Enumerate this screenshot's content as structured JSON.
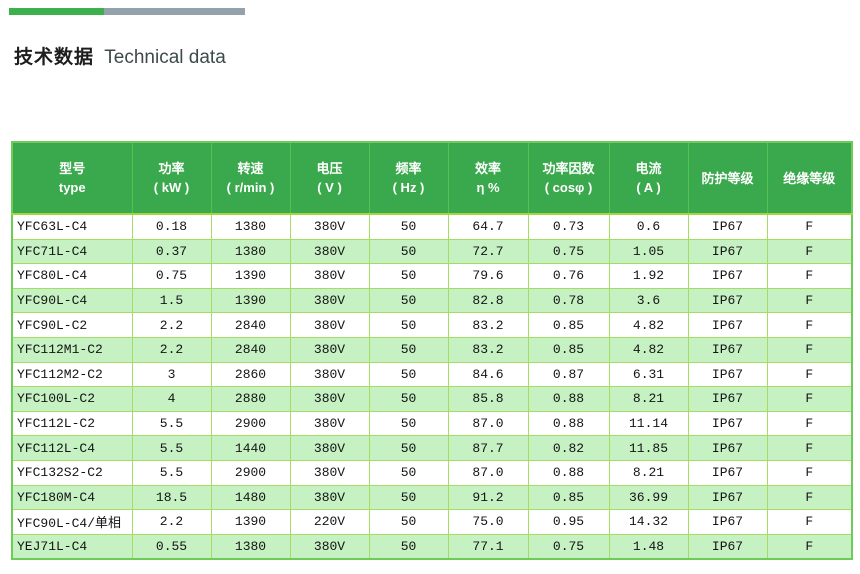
{
  "page": {
    "title": {
      "cn": "技术数据",
      "en": "Technical data"
    }
  },
  "accent_bar": {
    "green_color": "#3cb14b",
    "gray_color": "#93a2ab"
  },
  "colors": {
    "header_background": "#3aa84c",
    "header_text": "#ffffff",
    "alt_row_background": "#c5f1c3",
    "grid_line": "#a6dc64",
    "cell_text": "#141414"
  },
  "table": {
    "columns": [
      {
        "key": "type",
        "label_cn": "型号",
        "label_sub": "type"
      },
      {
        "key": "power",
        "label_cn": "功率",
        "label_sub": "( kW )"
      },
      {
        "key": "speed",
        "label_cn": "转速",
        "label_sub": "( r/min )"
      },
      {
        "key": "voltage",
        "label_cn": "电压",
        "label_sub": "( V )"
      },
      {
        "key": "frequency",
        "label_cn": "频率",
        "label_sub": "( Hz )"
      },
      {
        "key": "efficiency",
        "label_cn": "效率",
        "label_sub": "η %"
      },
      {
        "key": "power_factor",
        "label_cn": "功率因数",
        "label_sub": "( cosφ )"
      },
      {
        "key": "current",
        "label_cn": "电流",
        "label_sub": "( A )"
      },
      {
        "key": "protection",
        "label_cn": "防护等级",
        "label_sub": ""
      },
      {
        "key": "insulation",
        "label_cn": "绝缘等级",
        "label_sub": ""
      }
    ],
    "rows": [
      [
        "YFC63L-C4",
        "0.18",
        "1380",
        "380V",
        "50",
        "64.7",
        "0.73",
        "0.6",
        "IP67",
        "F"
      ],
      [
        "YFC71L-C4",
        "0.37",
        "1380",
        "380V",
        "50",
        "72.7",
        "0.75",
        "1.05",
        "IP67",
        "F"
      ],
      [
        "YFC80L-C4",
        "0.75",
        "1390",
        "380V",
        "50",
        "79.6",
        "0.76",
        "1.92",
        "IP67",
        "F"
      ],
      [
        "YFC90L-C4",
        "1.5",
        "1390",
        "380V",
        "50",
        "82.8",
        "0.78",
        "3.6",
        "IP67",
        "F"
      ],
      [
        "YFC90L-C2",
        "2.2",
        "2840",
        "380V",
        "50",
        "83.2",
        "0.85",
        "4.82",
        "IP67",
        "F"
      ],
      [
        "YFC112M1-C2",
        "2.2",
        "2840",
        "380V",
        "50",
        "83.2",
        "0.85",
        "4.82",
        "IP67",
        "F"
      ],
      [
        "YFC112M2-C2",
        "3",
        "2860",
        "380V",
        "50",
        "84.6",
        "0.87",
        "6.31",
        "IP67",
        "F"
      ],
      [
        "YFC100L-C2",
        "4",
        "2880",
        "380V",
        "50",
        "85.8",
        "0.88",
        "8.21",
        "IP67",
        "F"
      ],
      [
        "YFC112L-C2",
        "5.5",
        "2900",
        "380V",
        "50",
        "87.0",
        "0.88",
        "11.14",
        "IP67",
        "F"
      ],
      [
        "YFC112L-C4",
        "5.5",
        "1440",
        "380V",
        "50",
        "87.7",
        "0.82",
        "11.85",
        "IP67",
        "F"
      ],
      [
        "YFC132S2-C2",
        "5.5",
        "2900",
        "380V",
        "50",
        "87.0",
        "0.88",
        "8.21",
        "IP67",
        "F"
      ],
      [
        "YFC180M-C4",
        "18.5",
        "1480",
        "380V",
        "50",
        "91.2",
        "0.85",
        "36.99",
        "IP67",
        "F"
      ],
      [
        "YFC90L-C4/单相",
        "2.2",
        "1390",
        "220V",
        "50",
        "75.0",
        "0.95",
        "14.32",
        "IP67",
        "F"
      ],
      [
        "YEJ71L-C4",
        "0.55",
        "1380",
        "380V",
        "50",
        "77.1",
        "0.75",
        "1.48",
        "IP67",
        "F"
      ]
    ]
  }
}
